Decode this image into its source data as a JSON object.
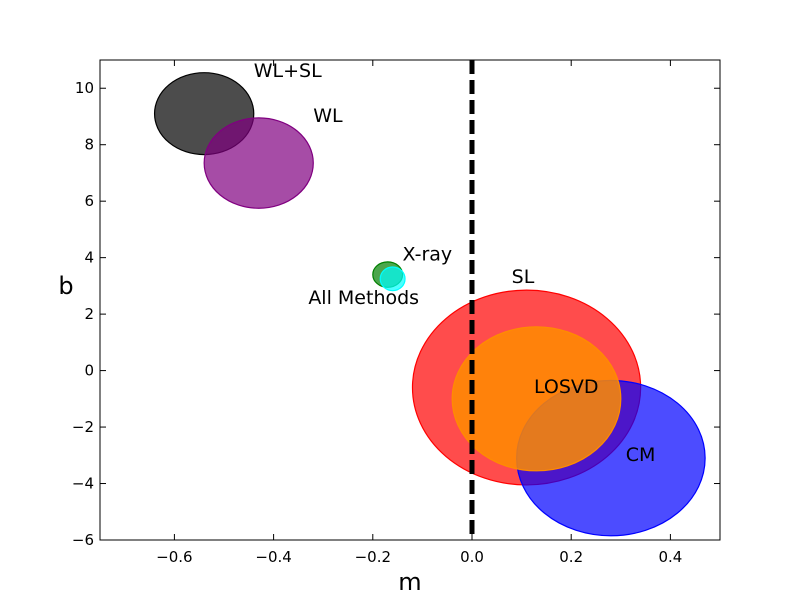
{
  "chart_data": {
    "type": "scatter",
    "xlabel": "m",
    "ylabel": "b",
    "xlim": [
      -0.75,
      0.5
    ],
    "ylim": [
      -6,
      11
    ],
    "x_ticks": [
      -0.6,
      -0.4,
      -0.2,
      0.0,
      0.2,
      0.4
    ],
    "x_tick_labels": [
      "−0.6",
      "−0.4",
      "−0.2",
      "0.0",
      "0.2",
      "0.4"
    ],
    "y_ticks": [
      -6,
      -4,
      -2,
      0,
      2,
      4,
      6,
      8,
      10
    ],
    "y_tick_labels": [
      "−6",
      "−4",
      "−2",
      "0",
      "2",
      "4",
      "6",
      "8",
      "10"
    ],
    "grid": false,
    "reference_line": {
      "x": 0.0,
      "style": "dashed",
      "color": "#000000"
    },
    "regions": [
      {
        "name": "WL+SL",
        "cx": -0.54,
        "cy": 9.1,
        "rx": 0.1,
        "ry": 1.45,
        "color": "#000000",
        "opacity": 0.7,
        "label": "WL+SL",
        "label_x": -0.44,
        "label_y": 10.4
      },
      {
        "name": "WL",
        "cx": -0.43,
        "cy": 7.35,
        "rx": 0.11,
        "ry": 1.6,
        "color": "#800080",
        "opacity": 0.7,
        "label": "WL",
        "label_x": -0.32,
        "label_y": 8.8
      },
      {
        "name": "SL",
        "cx": 0.11,
        "cy": -0.6,
        "rx": 0.23,
        "ry": 3.45,
        "color": "#ff0000",
        "opacity": 0.7,
        "label": "SL",
        "label_x": 0.08,
        "label_y": 3.1
      },
      {
        "name": "CM",
        "cx": 0.28,
        "cy": -3.1,
        "rx": 0.19,
        "ry": 2.75,
        "color": "#0000ff",
        "opacity": 0.7,
        "label": "CM",
        "label_x": 0.31,
        "label_y": -3.2
      },
      {
        "name": "LOSVD",
        "cx": 0.13,
        "cy": -1.0,
        "rx": 0.17,
        "ry": 2.55,
        "color": "#ff8c00",
        "opacity": 0.85,
        "label": "LOSVD",
        "label_x": 0.125,
        "label_y": -0.8
      },
      {
        "name": "X-ray",
        "cx": -0.17,
        "cy": 3.4,
        "rx": 0.03,
        "ry": 0.45,
        "color": "#008000",
        "opacity": 0.7,
        "label": "X-ray",
        "label_x": -0.14,
        "label_y": 3.9
      },
      {
        "name": "All Methods",
        "cx": -0.16,
        "cy": 3.25,
        "rx": 0.025,
        "ry": 0.42,
        "color": "#00ffff",
        "opacity": 0.7,
        "label": "All Methods",
        "label_x": -0.33,
        "label_y": 2.35
      }
    ]
  }
}
